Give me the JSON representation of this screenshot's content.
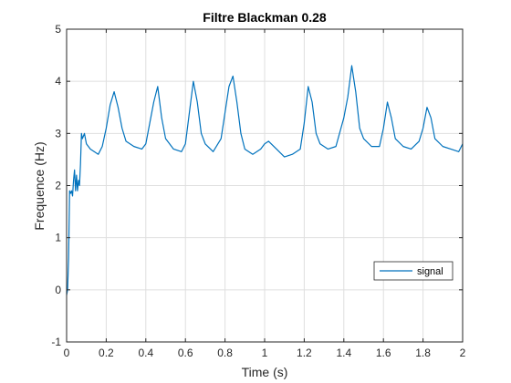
{
  "chart_data": {
    "type": "line",
    "title": "Filtre Blackman 0.28",
    "xlabel": "Time (s)",
    "ylabel": "Frequence (Hz)",
    "xlim": [
      0,
      2
    ],
    "ylim": [
      -1,
      5
    ],
    "xticks": [
      "0",
      "0.2",
      "0.4",
      "0.6",
      "0.8",
      "1",
      "1.2",
      "1.4",
      "1.6",
      "1.8",
      "2"
    ],
    "yticks": [
      "-1",
      "0",
      "1",
      "2",
      "3",
      "4",
      "5"
    ],
    "grid": true,
    "legend_position": "bottom-right",
    "colors": {
      "series": "#0072BD",
      "grid": "#dfdfdf",
      "axis": "#262626"
    },
    "series": [
      {
        "name": "signal",
        "x": [
          0,
          0.005,
          0.01,
          0.015,
          0.02,
          0.025,
          0.03,
          0.035,
          0.04,
          0.045,
          0.05,
          0.055,
          0.06,
          0.065,
          0.07,
          0.075,
          0.08,
          0.09,
          0.1,
          0.12,
          0.14,
          0.16,
          0.18,
          0.2,
          0.22,
          0.24,
          0.26,
          0.28,
          0.3,
          0.34,
          0.38,
          0.4,
          0.42,
          0.44,
          0.46,
          0.48,
          0.5,
          0.54,
          0.58,
          0.6,
          0.62,
          0.64,
          0.66,
          0.68,
          0.7,
          0.74,
          0.78,
          0.8,
          0.82,
          0.84,
          0.86,
          0.88,
          0.9,
          0.94,
          0.98,
          1.0,
          1.02,
          1.06,
          1.1,
          1.14,
          1.18,
          1.2,
          1.22,
          1.24,
          1.26,
          1.28,
          1.32,
          1.36,
          1.4,
          1.42,
          1.44,
          1.46,
          1.48,
          1.5,
          1.54,
          1.58,
          1.6,
          1.62,
          1.64,
          1.66,
          1.7,
          1.74,
          1.78,
          1.8,
          1.82,
          1.84,
          1.86,
          1.9,
          1.94,
          1.98,
          2.0
        ],
        "values": [
          -0.1,
          0.0,
          0.6,
          1.9,
          1.85,
          1.9,
          1.8,
          2.1,
          2.3,
          1.9,
          2.2,
          1.9,
          2.1,
          2.0,
          2.4,
          3.0,
          2.9,
          3.0,
          2.8,
          2.7,
          2.65,
          2.6,
          2.75,
          3.1,
          3.55,
          3.8,
          3.5,
          3.1,
          2.85,
          2.75,
          2.7,
          2.8,
          3.2,
          3.6,
          3.9,
          3.3,
          2.9,
          2.7,
          2.65,
          2.8,
          3.4,
          4.0,
          3.6,
          3.0,
          2.8,
          2.65,
          2.9,
          3.4,
          3.9,
          4.1,
          3.6,
          3.0,
          2.7,
          2.6,
          2.7,
          2.8,
          2.85,
          2.7,
          2.55,
          2.6,
          2.7,
          3.2,
          3.9,
          3.6,
          3.0,
          2.8,
          2.7,
          2.75,
          3.3,
          3.7,
          4.3,
          3.8,
          3.1,
          2.9,
          2.75,
          2.75,
          3.1,
          3.6,
          3.3,
          2.9,
          2.75,
          2.7,
          2.85,
          3.1,
          3.5,
          3.3,
          2.9,
          2.75,
          2.7,
          2.65,
          2.8
        ]
      }
    ]
  }
}
